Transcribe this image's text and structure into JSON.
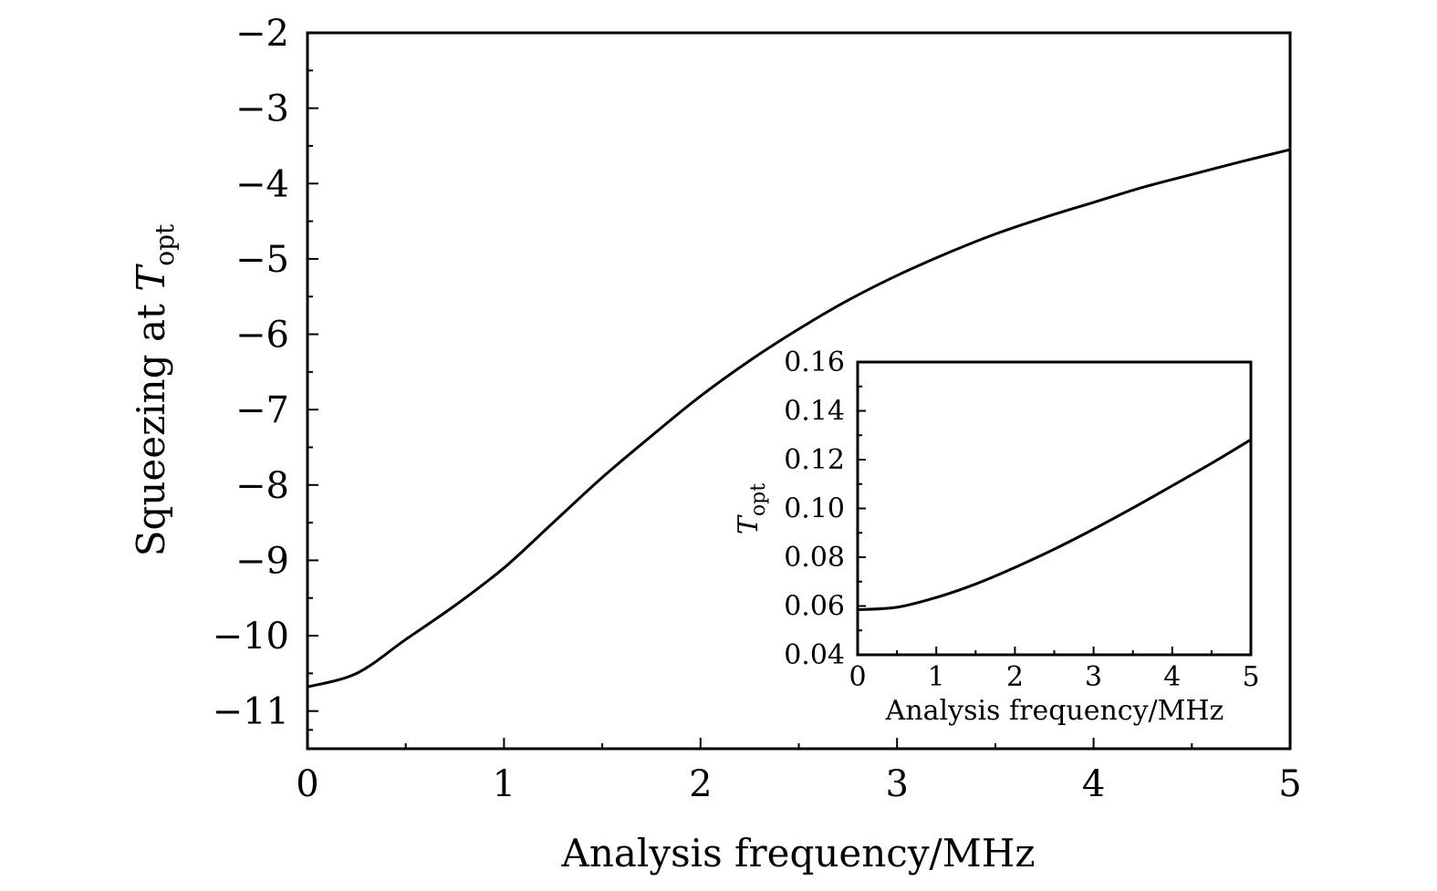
{
  "chart_data": [
    {
      "id": "main",
      "type": "line",
      "title": "",
      "xlabel": "Analysis frequency/MHz",
      "ylabel_text": "Squeezing at ",
      "ylabel_symbol": "T",
      "ylabel_subscript": "opt",
      "xlim": [
        0,
        5
      ],
      "ylim": [
        -11.5,
        -2
      ],
      "xticks": [
        0,
        1,
        2,
        3,
        4,
        5
      ],
      "xtick_labels": [
        "0",
        "1",
        "2",
        "3",
        "4",
        "5"
      ],
      "yticks": [
        -2,
        -3,
        -4,
        -5,
        -6,
        -7,
        -8,
        -9,
        -10,
        -11
      ],
      "ytick_labels": [
        "−2",
        "−3",
        "−4",
        "−5",
        "−6",
        "−7",
        "−8",
        "−9",
        "−10",
        "−11"
      ],
      "series": [
        {
          "name": "squeezing",
          "x": [
            0,
            0.25,
            0.5,
            0.75,
            1.0,
            1.25,
            1.5,
            1.75,
            2.0,
            2.25,
            2.5,
            2.75,
            3.0,
            3.25,
            3.5,
            3.75,
            4.0,
            4.25,
            4.5,
            4.75,
            5.0
          ],
          "y": [
            -10.68,
            -10.5,
            -10.05,
            -9.6,
            -9.1,
            -8.5,
            -7.9,
            -7.35,
            -6.82,
            -6.35,
            -5.93,
            -5.55,
            -5.22,
            -4.93,
            -4.67,
            -4.45,
            -4.25,
            -4.05,
            -3.88,
            -3.71,
            -3.55
          ]
        }
      ]
    },
    {
      "id": "inset",
      "type": "line",
      "title": "",
      "xlabel": "Analysis frequency/MHz",
      "ylabel_symbol": "T",
      "ylabel_subscript": "opt",
      "xlim": [
        0,
        5
      ],
      "ylim": [
        0.04,
        0.16
      ],
      "xticks": [
        0,
        1,
        2,
        3,
        4,
        5
      ],
      "xtick_labels": [
        "0",
        "1",
        "2",
        "3",
        "4",
        "5"
      ],
      "yticks": [
        0.04,
        0.06,
        0.08,
        0.1,
        0.12,
        0.14,
        0.16
      ],
      "ytick_labels": [
        "0.04",
        "0.06",
        "0.08",
        "0.10",
        "0.12",
        "0.14",
        "0.16"
      ],
      "series": [
        {
          "name": "T_opt",
          "x": [
            0,
            0.5,
            1.0,
            1.5,
            2.0,
            2.5,
            3.0,
            3.5,
            4.0,
            4.5,
            5.0
          ],
          "y": [
            0.0585,
            0.0595,
            0.0635,
            0.069,
            0.0758,
            0.0833,
            0.0915,
            0.1002,
            0.1093,
            0.1185,
            0.1282
          ]
        }
      ]
    }
  ]
}
